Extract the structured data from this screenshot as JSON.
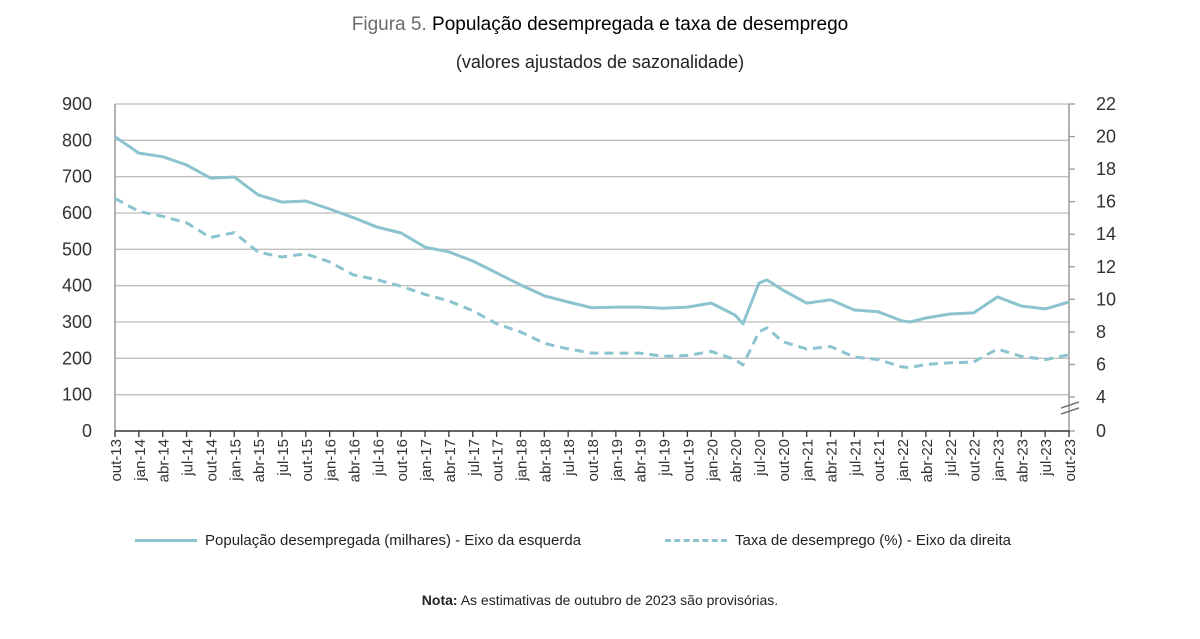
{
  "title_prefix": "Figura 5.",
  "title": "População desempregada e taxa de desemprego",
  "subtitle": "(valores ajustados de sazonalidade)",
  "note_label": "Nota:",
  "note_text": "As estimativas de outubro de 2023 são provisórias.",
  "chart_data": {
    "type": "line",
    "title": "População desempregada e taxa de desemprego",
    "subtitle": "(valores ajustados de sazonalidade)",
    "x_ticks": [
      "out-13",
      "jan-14",
      "abr-14",
      "jul-14",
      "out-14",
      "jan-15",
      "abr-15",
      "jul-15",
      "out-15",
      "jan-16",
      "abr-16",
      "jul-16",
      "out-16",
      "jan-17",
      "abr-17",
      "jul-17",
      "out-17",
      "jan-18",
      "abr-18",
      "jul-18",
      "out-18",
      "jan-19",
      "abr-19",
      "jul-19",
      "out-19",
      "jan-20",
      "abr-20",
      "jul-20",
      "out-20",
      "jan-21",
      "abr-21",
      "jul-21",
      "out-21",
      "jan-22",
      "abr-22",
      "jul-22",
      "out-22",
      "jan-23",
      "abr-23",
      "jul-23",
      "out-23"
    ],
    "x": [
      "out-13",
      "jan-14",
      "abr-14",
      "jul-14",
      "out-14",
      "jan-15",
      "abr-15",
      "jul-15",
      "out-15",
      "jan-16",
      "abr-16",
      "jul-16",
      "out-16",
      "jan-17",
      "abr-17",
      "jul-17",
      "out-17",
      "jan-18",
      "abr-18",
      "jul-18",
      "out-18",
      "jan-19",
      "abr-19",
      "jul-19",
      "out-19",
      "jan-20",
      "abr-20",
      "mai-20",
      "jul-20",
      "ago-20",
      "out-20",
      "jan-21",
      "abr-21",
      "jul-21",
      "out-21",
      "jan-22",
      "fev-22",
      "abr-22",
      "jul-22",
      "out-22",
      "jan-23",
      "abr-23",
      "jul-23",
      "out-23"
    ],
    "left_axis": {
      "ylim": [
        0,
        900
      ],
      "ticks": [
        0,
        100,
        200,
        300,
        400,
        500,
        600,
        700,
        800,
        900
      ]
    },
    "right_axis": {
      "ylim": [
        0,
        22
      ],
      "ticks": [
        0,
        4,
        6,
        8,
        10,
        12,
        14,
        16,
        18,
        20,
        22
      ],
      "axis_break": "0-4"
    },
    "grid": true,
    "legend_position": "bottom",
    "series": [
      {
        "name": "População desempregada (milhares) - Eixo da esquerda",
        "axis": "left",
        "style": "solid",
        "color": "#8bc4cf",
        "values": [
          810,
          765,
          755,
          732,
          696,
          699,
          650,
          630,
          633,
          611,
          587,
          561,
          545,
          506,
          493,
          468,
          435,
          402,
          372,
          355,
          339,
          341,
          341,
          338,
          341,
          352,
          319,
          295,
          407,
          416,
          388,
          352,
          361,
          333,
          328,
          303,
          300,
          311,
          322,
          325,
          369,
          344,
          336,
          355
        ]
      },
      {
        "name": "Taxa de desemprego (%) - Eixo da direita",
        "axis": "right",
        "style": "dashed",
        "color": "#8bc4cf",
        "values": [
          16.2,
          15.4,
          15.1,
          14.7,
          13.8,
          14.1,
          12.9,
          12.6,
          12.8,
          12.3,
          11.5,
          11.2,
          10.8,
          10.3,
          9.9,
          9.3,
          8.5,
          8.0,
          7.3,
          6.95,
          6.7,
          6.7,
          6.7,
          6.5,
          6.55,
          6.8,
          6.3,
          5.97,
          8.0,
          8.25,
          7.4,
          6.95,
          7.1,
          6.45,
          6.3,
          5.85,
          5.8,
          6.0,
          6.1,
          6.15,
          6.95,
          6.5,
          6.3,
          6.6
        ]
      }
    ]
  }
}
